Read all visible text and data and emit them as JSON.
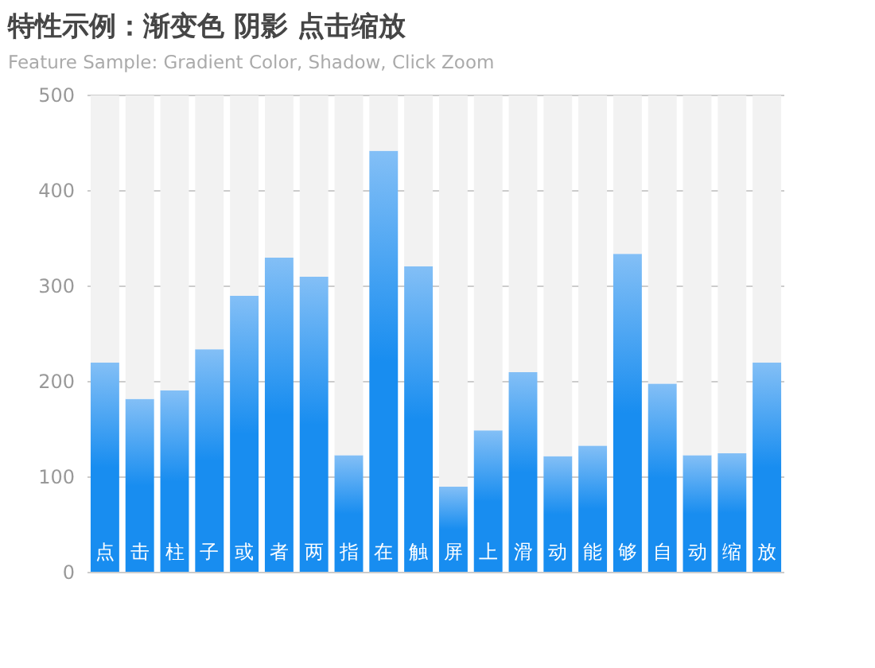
{
  "chart_data": {
    "type": "bar",
    "title": "特性示例：渐变色 阴影 点击缩放",
    "subtitle": "Feature Sample: Gradient Color, Shadow, Click Zoom",
    "categories": [
      "点",
      "击",
      "柱",
      "子",
      "或",
      "者",
      "两",
      "指",
      "在",
      "触",
      "屏",
      "上",
      "滑",
      "动",
      "能",
      "够",
      "自",
      "动",
      "缩",
      "放"
    ],
    "stacked": true,
    "series": [
      {
        "color": "#188df0",
        "values": [
          220,
          182,
          191,
          234,
          290,
          330,
          310,
          123,
          442,
          321,
          90,
          149,
          210,
          122,
          133,
          334,
          198,
          123,
          125,
          220
        ]
      },
      {
        "color": "#f2f2f2",
        "values": [
          280,
          318,
          309,
          266,
          210,
          170,
          190,
          377,
          58,
          179,
          410,
          351,
          290,
          378,
          367,
          166,
          302,
          377,
          375,
          280
        ]
      }
    ],
    "ylim": [
      0,
      500
    ],
    "yticks": [
      0,
      100,
      200,
      300,
      400,
      500
    ],
    "grid": "y"
  }
}
